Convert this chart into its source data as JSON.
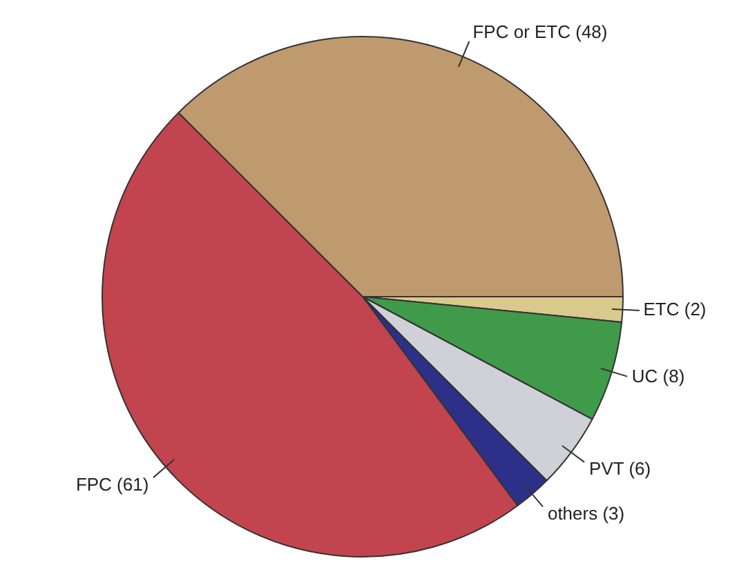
{
  "chart_data": {
    "type": "pie",
    "categories": [
      "FPC or ETC (48)",
      "ETC (2)",
      "UC (8)",
      "PVT (6)",
      "others (3)",
      "FPC (61)"
    ],
    "values": [
      48,
      2,
      8,
      6,
      3,
      61
    ],
    "colors": [
      "#bf9a6e",
      "#d9c98c",
      "#3f9a4a",
      "#cfd0d8",
      "#2c3088",
      "#c2444e"
    ],
    "legend": false
  }
}
